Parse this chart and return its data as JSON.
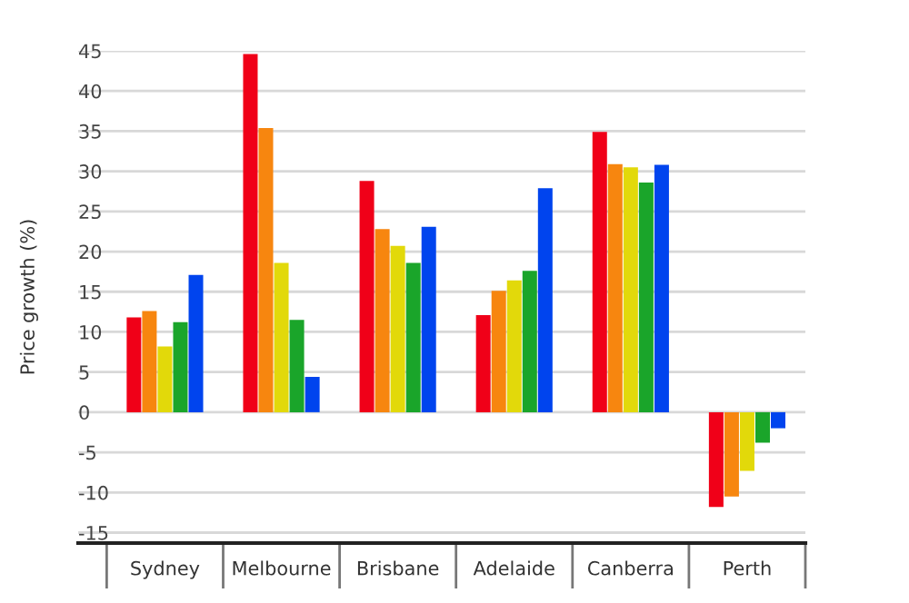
{
  "chart_data": {
    "type": "bar",
    "ylabel": "Price growth (%)",
    "categories": [
      "Sydney",
      "Melbourne",
      "Brisbane",
      "Adelaide",
      "Canberra",
      "Perth"
    ],
    "series": [
      {
        "color": "#f00018",
        "values": [
          11.8,
          44.6,
          28.8,
          12.1,
          34.9,
          -11.8
        ]
      },
      {
        "color": "#f7860f",
        "values": [
          12.6,
          35.4,
          22.8,
          15.1,
          30.9,
          -10.5
        ]
      },
      {
        "color": "#e2d90a",
        "values": [
          8.2,
          18.6,
          20.7,
          16.4,
          30.5,
          -7.3
        ]
      },
      {
        "color": "#1aa52a",
        "values": [
          11.2,
          11.5,
          18.6,
          17.6,
          28.6,
          -3.8
        ]
      },
      {
        "color": "#0044ee",
        "values": [
          17.1,
          4.4,
          23.1,
          27.9,
          30.8,
          -2.0
        ]
      }
    ],
    "ylim": [
      -16.3,
      45
    ],
    "yticks": [
      -15,
      -10,
      -5,
      0,
      5,
      10,
      15,
      20,
      25,
      30,
      35,
      40,
      45
    ],
    "grid": "y",
    "legend": false
  }
}
